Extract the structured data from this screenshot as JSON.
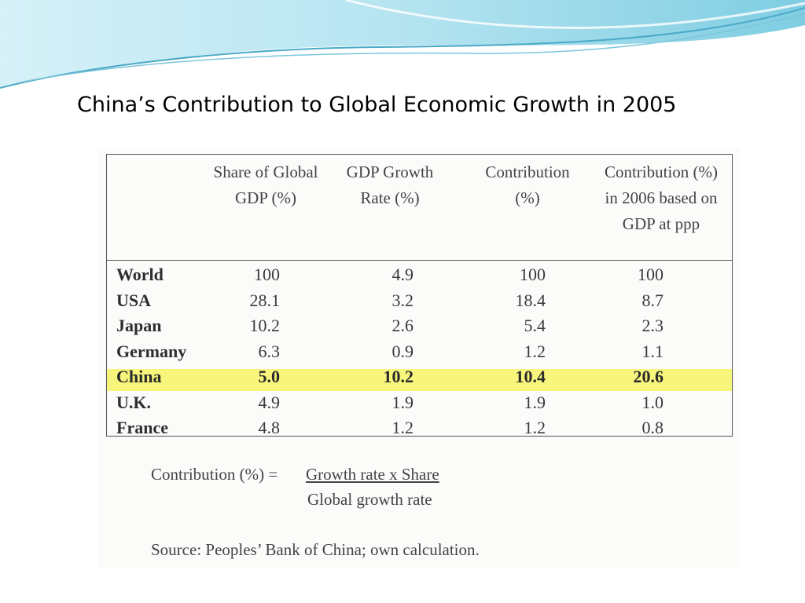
{
  "slide": {
    "title": "China’s Contribution to Global Economic Growth in 2005"
  },
  "table": {
    "headers": [
      "Share of Global GDP (%)",
      "GDP Growth Rate (%)",
      "Contribution (%)",
      "Contribution (%) in 2006 based on GDP at ppp"
    ],
    "rows": [
      {
        "country": "World",
        "share": "100",
        "growth": "4.9",
        "contribution": "100",
        "contribution_2006": "100",
        "highlight": false
      },
      {
        "country": "USA",
        "share": "28.1",
        "growth": "3.2",
        "contribution": "18.4",
        "contribution_2006": "8.7",
        "highlight": false
      },
      {
        "country": "Japan",
        "share": "10.2",
        "growth": "2.6",
        "contribution": "5.4",
        "contribution_2006": "2.3",
        "highlight": false
      },
      {
        "country": "Germany",
        "share": "6.3",
        "growth": "0.9",
        "contribution": "1.2",
        "contribution_2006": "1.1",
        "highlight": false
      },
      {
        "country": "China",
        "share": "5.0",
        "growth": "10.2",
        "contribution": "10.4",
        "contribution_2006": "20.6",
        "highlight": true
      },
      {
        "country": "U.K.",
        "share": "4.9",
        "growth": "1.9",
        "contribution": "1.9",
        "contribution_2006": "1.0",
        "highlight": false
      },
      {
        "country": "France",
        "share": "4.8",
        "growth": "1.2",
        "contribution": "1.2",
        "contribution_2006": "0.8",
        "highlight": false
      }
    ],
    "highlight_color": "#f7f57c"
  },
  "formula": {
    "lhs": "Contribution (%) =",
    "numerator": "Growth rate x Share",
    "denominator": "Global growth rate"
  },
  "source": "Source: Peoples’ Bank of China; own calculation.",
  "colors": {
    "wave_light": "#cdeef6",
    "wave_dark": "#4aa9c6"
  }
}
